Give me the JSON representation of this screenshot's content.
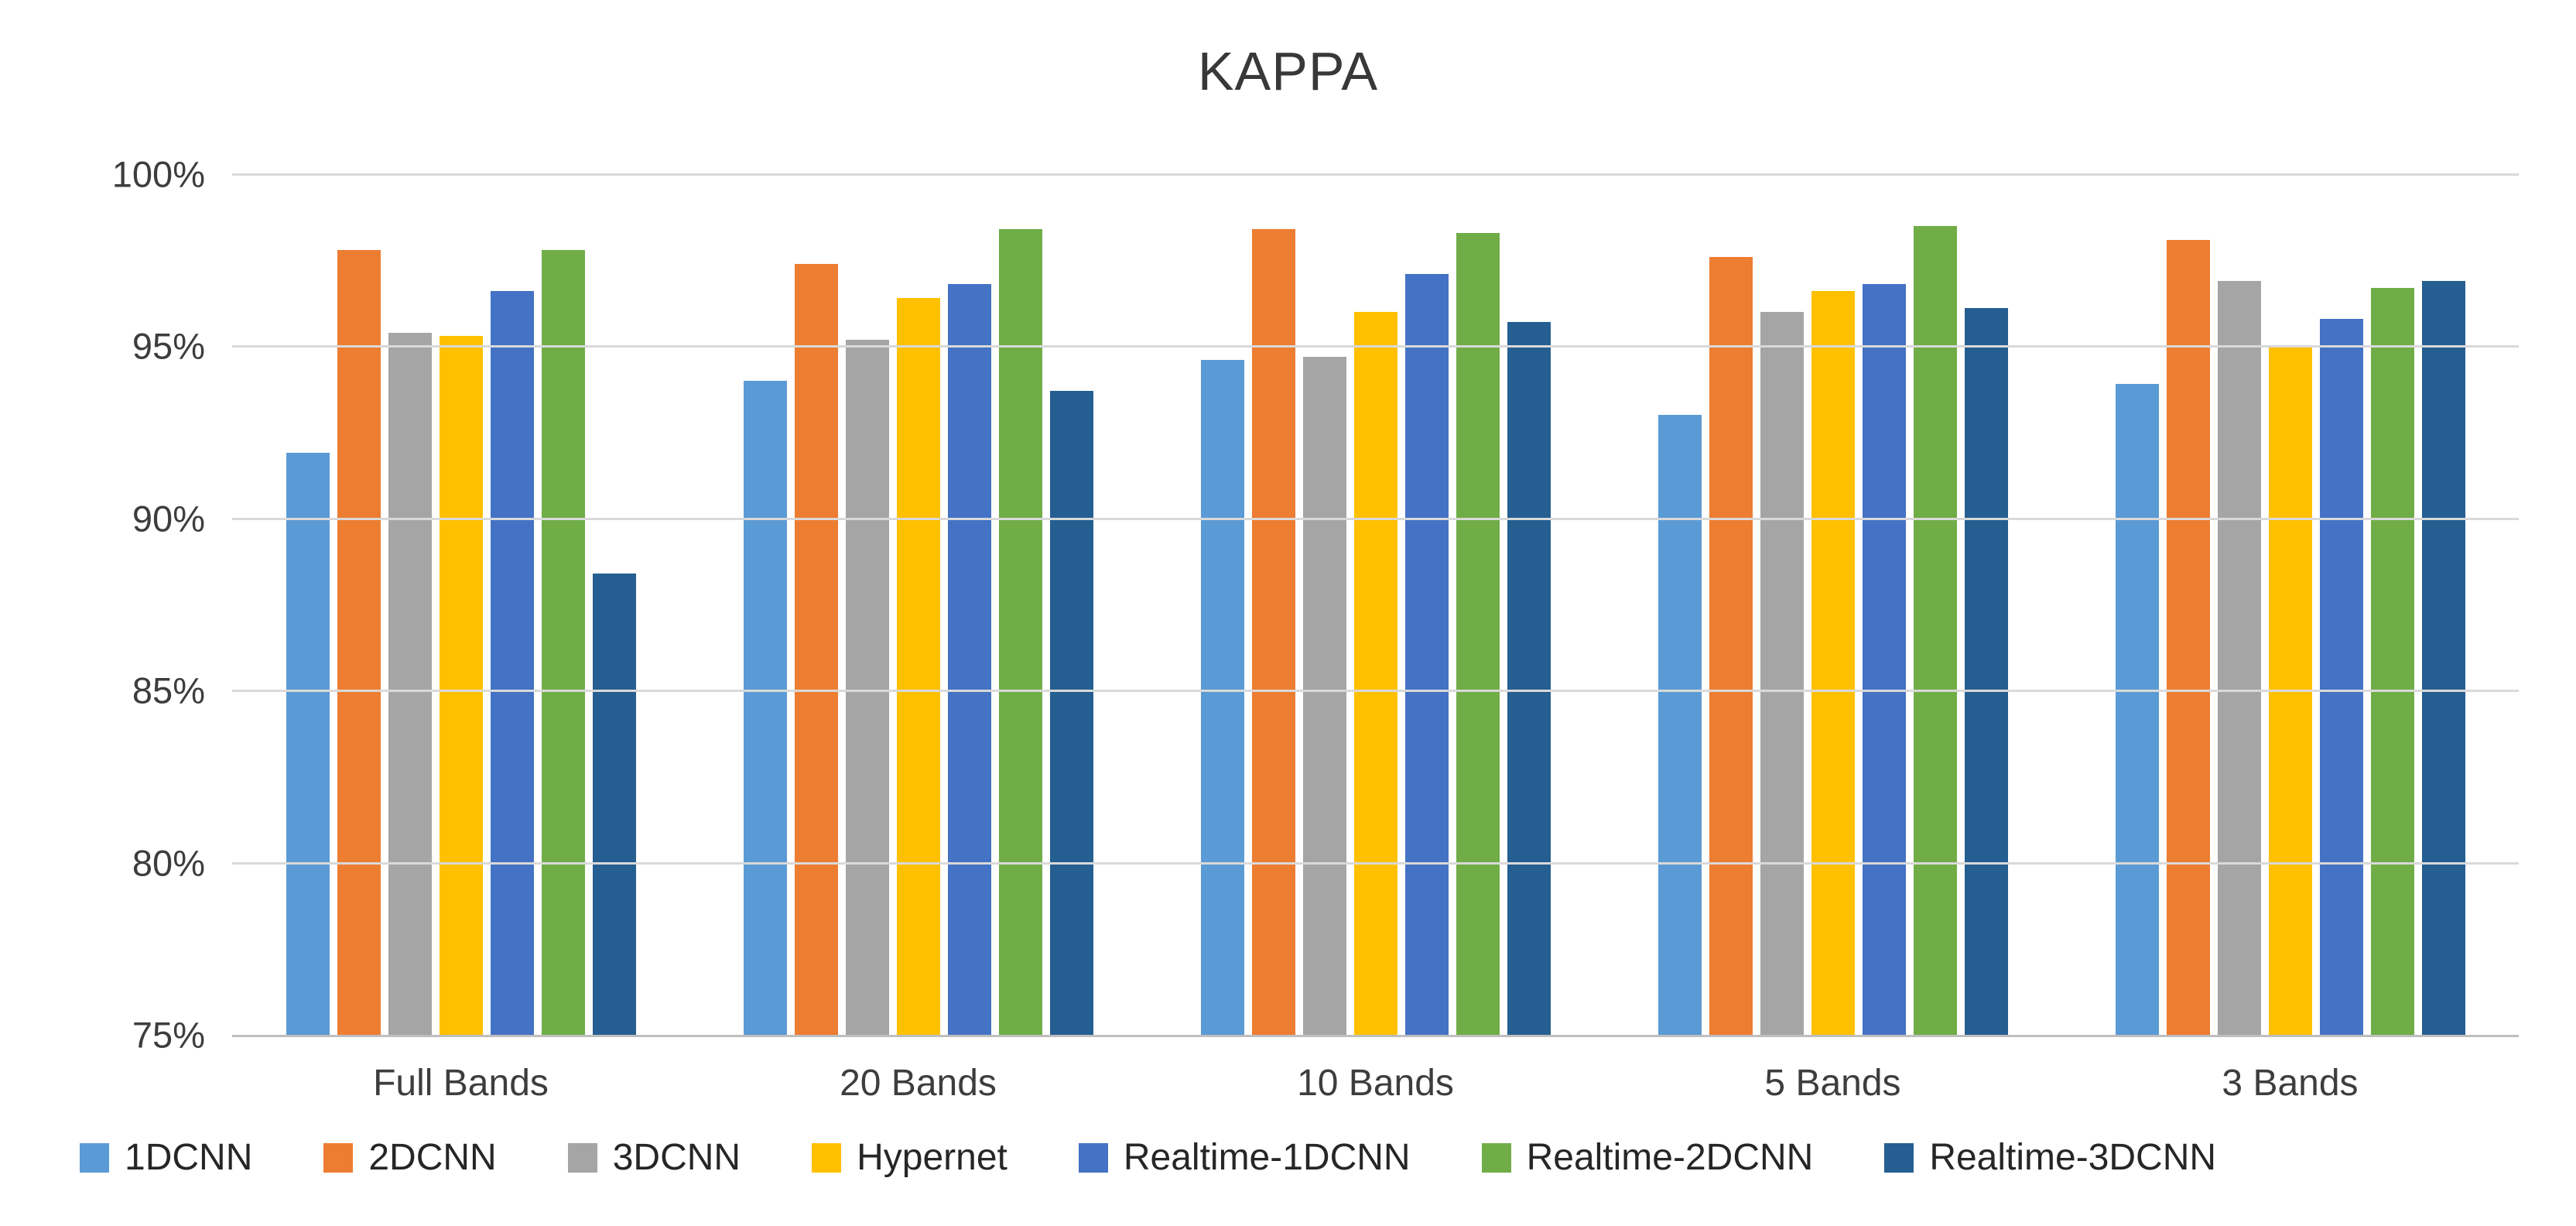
{
  "chart_data": {
    "type": "bar",
    "title": "KAPPA",
    "categories": [
      "Full Bands",
      "20 Bands",
      "10 Bands",
      "5 Bands",
      "3 Bands"
    ],
    "series": [
      {
        "name": "1DCNN",
        "color": "#5B9BD5",
        "values": [
          91.9,
          94.0,
          94.6,
          93.0,
          93.9
        ]
      },
      {
        "name": "2DCNN",
        "color": "#ED7D31",
        "values": [
          97.8,
          97.4,
          98.4,
          97.6,
          98.1
        ]
      },
      {
        "name": "3DCNN",
        "color": "#A5A5A5",
        "values": [
          95.4,
          95.2,
          94.7,
          96.0,
          96.9
        ]
      },
      {
        "name": "Hypernet",
        "color": "#FFC000",
        "values": [
          95.3,
          96.4,
          96.0,
          96.6,
          95.0
        ]
      },
      {
        "name": "Realtime-1DCNN",
        "color": "#4472C4",
        "values": [
          96.6,
          96.8,
          97.1,
          96.8,
          95.8
        ]
      },
      {
        "name": "Realtime-2DCNN",
        "color": "#70AD47",
        "values": [
          97.8,
          98.4,
          98.3,
          98.5,
          96.7
        ]
      },
      {
        "name": "Realtime-3DCNN",
        "color": "#255E91",
        "values": [
          88.4,
          93.7,
          95.7,
          96.1,
          96.9
        ]
      }
    ],
    "ylim": [
      75,
      100
    ],
    "ytick_step": 5,
    "ytick_labels": [
      "75%",
      "80%",
      "85%",
      "90%",
      "95%",
      "100%"
    ],
    "xlabel": "",
    "ylabel": "",
    "grid": true,
    "legend_position": "bottom-left",
    "gridline_color": "#D9D9D9",
    "axis_line_color": "#BFBFBF"
  }
}
